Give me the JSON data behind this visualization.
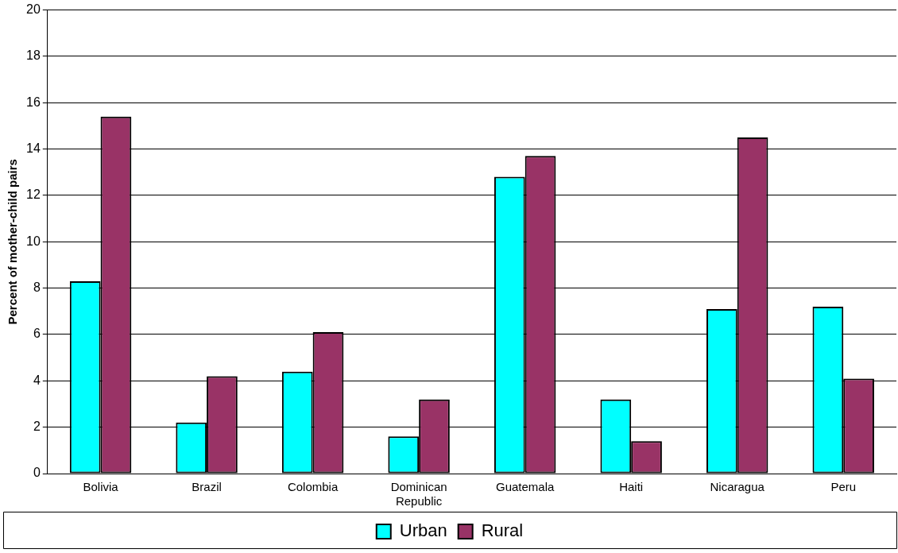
{
  "chart_data": {
    "type": "bar",
    "ylabel": "Percent of mother-child pairs",
    "categories": [
      "Bolivia",
      "Brazil",
      "Colombia",
      "Dominican Republic",
      "Guatemala",
      "Haiti",
      "Nicaragua",
      "Peru"
    ],
    "series": [
      {
        "name": "Urban",
        "color": "#00ffff",
        "values": [
          8.3,
          2.2,
          4.4,
          1.6,
          12.8,
          3.2,
          7.1,
          7.2
        ]
      },
      {
        "name": "Rural",
        "color": "#993366",
        "values": [
          15.4,
          4.2,
          6.1,
          3.2,
          13.7,
          1.4,
          14.5,
          4.1
        ]
      }
    ],
    "ylim": [
      0,
      20
    ],
    "yticks": [
      0,
      2,
      4,
      6,
      8,
      10,
      12,
      14,
      16,
      18,
      20
    ],
    "grid": "y",
    "legend": "bottom"
  }
}
